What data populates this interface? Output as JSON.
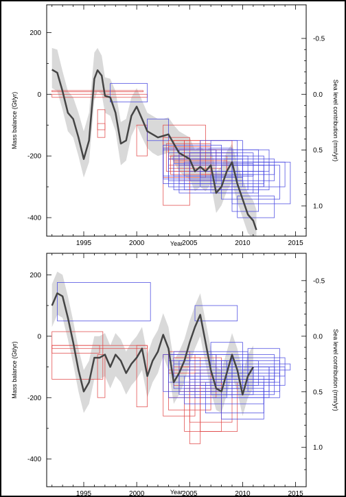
{
  "figure": {
    "panel_count": 2
  },
  "colors": {
    "envelope": "#d9d9d9",
    "mean_line": "#444444",
    "red_boxes": "#e04040",
    "blue_boxes": "#4040e0",
    "frame": "#000000"
  },
  "chart_data": [
    {
      "type": "line",
      "panel": "top",
      "title": "",
      "xlabel": "Year",
      "ylabel": "Mass balance (Gt/yr)",
      "y2label": "Sea level contribution (mm/yr)",
      "xlim": [
        1991.5,
        2016
      ],
      "ylim": [
        -460,
        290
      ],
      "x_ticks": [
        1995,
        2000,
        2005,
        2010,
        2015
      ],
      "x_tick_labels": [
        "1995",
        "2000",
        "2005",
        "2010",
        "2015"
      ],
      "y_ticks": [
        -400,
        -200,
        0,
        200
      ],
      "y_tick_labels": [
        "-400",
        "-200",
        "0",
        "200"
      ],
      "y2_ticks": [
        -0.5,
        0.0,
        0.5,
        1.0
      ],
      "y2_tick_labels": [
        "-0.5",
        "0.0",
        "0.5",
        "1.0"
      ],
      "y2_conversion_gt_per_mm": -362,
      "grid": false,
      "series": [
        {
          "x": [
            1992.0,
            1992.5,
            1993.0,
            1993.5,
            1994.0,
            1994.5,
            1995.0,
            1995.5,
            1996.0,
            1996.3,
            1996.7,
            1997.0,
            1997.5,
            1998.0,
            1998.5,
            1999.0,
            1999.5,
            2000.0,
            2000.5,
            2001.0,
            2001.5,
            2002.0,
            2002.5,
            2003.0,
            2003.5,
            2004.0,
            2004.5,
            2005.0,
            2005.5,
            2006.0,
            2006.5,
            2007.0,
            2007.5,
            2008.0,
            2008.5,
            2009.0,
            2009.5,
            2010.0,
            2010.5,
            2011.0,
            2011.3
          ],
          "y": [
            80,
            70,
            10,
            -60,
            -80,
            -140,
            -210,
            -150,
            50,
            78,
            60,
            -5,
            -10,
            -60,
            -160,
            -150,
            -70,
            -40,
            -80,
            -120,
            -130,
            -140,
            -135,
            -130,
            -160,
            -190,
            -200,
            -210,
            -250,
            -235,
            -250,
            -230,
            -320,
            -300,
            -250,
            -220,
            -290,
            -340,
            -390,
            -410,
            -440
          ],
          "upper": [
            150,
            145,
            75,
            10,
            -10,
            -60,
            -120,
            -60,
            135,
            150,
            125,
            55,
            50,
            10,
            -90,
            -80,
            -10,
            20,
            -20,
            -60,
            -70,
            -80,
            -80,
            -75,
            -100,
            -120,
            -130,
            -140,
            -180,
            -170,
            -185,
            -170,
            -250,
            -235,
            -185,
            -160,
            -225,
            -275,
            -320,
            -345,
            -375
          ],
          "lower": [
            20,
            10,
            -50,
            -120,
            -140,
            -200,
            -270,
            -220,
            -20,
            10,
            0,
            -60,
            -70,
            -120,
            -230,
            -215,
            -135,
            -100,
            -140,
            -175,
            -190,
            -200,
            -195,
            -190,
            -220,
            -250,
            -265,
            -275,
            -315,
            -300,
            -315,
            -290,
            -385,
            -360,
            -315,
            -285,
            -350,
            -400,
            -450,
            -470,
            -500
          ]
        }
      ],
      "red_boxes": [
        {
          "x0": 1992.0,
          "x1": 2000.6,
          "y0": 8,
          "y1": 12
        },
        {
          "x0": 1992.0,
          "x1": 2001.0,
          "y0": -10,
          "y1": 0
        },
        {
          "x0": 1996.3,
          "x1": 1997.0,
          "y0": -140,
          "y1": -50
        },
        {
          "x0": 1996.3,
          "x1": 1997.0,
          "y0": -115,
          "y1": -95
        },
        {
          "x0": 2000.0,
          "x1": 2001.0,
          "y0": -200,
          "y1": -100
        },
        {
          "x0": 2002.5,
          "x1": 2005.0,
          "y0": -360,
          "y1": -140
        },
        {
          "x0": 2002.5,
          "x1": 2006.5,
          "y0": -270,
          "y1": -100
        },
        {
          "x0": 2002.8,
          "x1": 2007.0,
          "y0": -250,
          "y1": -160
        },
        {
          "x0": 2003.0,
          "x1": 2007.5,
          "y0": -230,
          "y1": -180
        },
        {
          "x0": 2003.0,
          "x1": 2008.0,
          "y0": -240,
          "y1": -210
        },
        {
          "x0": 2003.2,
          "x1": 2008.5,
          "y0": -260,
          "y1": -200
        },
        {
          "x0": 2003.5,
          "x1": 2009.0,
          "y0": -220,
          "y1": -150
        },
        {
          "x0": 2004.0,
          "x1": 2009.0,
          "y0": -280,
          "y1": -180
        },
        {
          "x0": 2005.0,
          "x1": 2009.0,
          "y0": -310,
          "y1": -190
        },
        {
          "x0": 2003.0,
          "x1": 2004.5,
          "y0": -200,
          "y1": -150
        },
        {
          "x0": 2004.5,
          "x1": 2006.0,
          "y0": -230,
          "y1": -150
        },
        {
          "x0": 2006.0,
          "x1": 2008.0,
          "y0": -260,
          "y1": -180
        },
        {
          "x0": 2003.5,
          "x1": 2008.5,
          "y0": -250,
          "y1": -215
        },
        {
          "x0": 2003.0,
          "x1": 2007.0,
          "y0": -210,
          "y1": -170
        },
        {
          "x0": 2007.0,
          "x1": 2009.0,
          "y0": -300,
          "y1": -230
        }
      ],
      "blue_boxes": [
        {
          "x0": 1997.5,
          "x1": 2001.0,
          "y0": -25,
          "y1": 35
        },
        {
          "x0": 2001.0,
          "x1": 2003.0,
          "y0": -150,
          "y1": -80
        },
        {
          "x0": 2002.5,
          "x1": 2007.5,
          "y0": -290,
          "y1": -180
        },
        {
          "x0": 2002.5,
          "x1": 2008.0,
          "y0": -275,
          "y1": -165
        },
        {
          "x0": 2002.5,
          "x1": 2009.0,
          "y0": -265,
          "y1": -175
        },
        {
          "x0": 2003.0,
          "x1": 2009.5,
          "y0": -300,
          "y1": -190
        },
        {
          "x0": 2003.0,
          "x1": 2010.0,
          "y0": -280,
          "y1": -210
        },
        {
          "x0": 2003.5,
          "x1": 2010.5,
          "y0": -310,
          "y1": -200
        },
        {
          "x0": 2003.5,
          "x1": 2011.0,
          "y0": -265,
          "y1": -225
        },
        {
          "x0": 2004.0,
          "x1": 2011.5,
          "y0": -320,
          "y1": -180
        },
        {
          "x0": 2004.0,
          "x1": 2012.0,
          "y0": -290,
          "y1": -230
        },
        {
          "x0": 2004.5,
          "x1": 2012.5,
          "y0": -310,
          "y1": -220
        },
        {
          "x0": 2005.0,
          "x1": 2013.0,
          "y0": -280,
          "y1": -210
        },
        {
          "x0": 2005.0,
          "x1": 2011.0,
          "y0": -250,
          "y1": -190
        },
        {
          "x0": 2006.0,
          "x1": 2012.0,
          "y0": -300,
          "y1": -250
        },
        {
          "x0": 2006.0,
          "x1": 2010.0,
          "y0": -270,
          "y1": -150
        },
        {
          "x0": 2007.0,
          "x1": 2011.0,
          "y0": -320,
          "y1": -260
        },
        {
          "x0": 2007.0,
          "x1": 2009.5,
          "y0": -200,
          "y1": -150
        },
        {
          "x0": 2008.0,
          "x1": 2013.5,
          "y0": -340,
          "y1": -230
        },
        {
          "x0": 2008.0,
          "x1": 2012.5,
          "y0": -250,
          "y1": -180
        },
        {
          "x0": 2009.0,
          "x1": 2012.0,
          "y0": -300,
          "y1": -200
        },
        {
          "x0": 2009.0,
          "x1": 2013.0,
          "y0": -260,
          "y1": -230
        },
        {
          "x0": 2010.0,
          "x1": 2014.0,
          "y0": -300,
          "y1": -220
        },
        {
          "x0": 2009.5,
          "x1": 2013.0,
          "y0": -400,
          "y1": -330
        },
        {
          "x0": 2009.0,
          "x1": 2011.5,
          "y0": -380,
          "y1": -300
        },
        {
          "x0": 2009.0,
          "x1": 2014.5,
          "y0": -355,
          "y1": -220
        }
      ]
    },
    {
      "type": "line",
      "panel": "bottom",
      "title": "",
      "xlabel": "Year",
      "ylabel": "Mass balance (Gt/yr)",
      "y2label": "Sea level contribution (mm/yr)",
      "xlim": [
        1991.5,
        2016
      ],
      "ylim": [
        -490,
        270
      ],
      "x_ticks": [
        1995,
        2000,
        2005,
        2010,
        2015
      ],
      "x_tick_labels": [
        "1995",
        "2000",
        "2005",
        "2010",
        "2015"
      ],
      "y_ticks": [
        -400,
        -200,
        0,
        200
      ],
      "y_tick_labels": [
        "-400",
        "-200",
        "0",
        "200"
      ],
      "y2_ticks": [
        -0.5,
        0.0,
        0.5,
        1.0
      ],
      "y2_tick_labels": [
        "-0.5",
        "0.0",
        "0.5",
        "1.0"
      ],
      "y2_conversion_gt_per_mm": -362,
      "grid": false,
      "series": [
        {
          "x": [
            1992.0,
            1992.5,
            1993.0,
            1993.5,
            1994.0,
            1994.5,
            1995.0,
            1995.5,
            1996.0,
            1996.5,
            1997.0,
            1997.5,
            1998.0,
            1998.5,
            1999.0,
            1999.5,
            2000.0,
            2000.5,
            2001.0,
            2001.5,
            2002.0,
            2002.5,
            2003.0,
            2003.5,
            2004.0,
            2004.5,
            2005.0,
            2005.5,
            2006.0,
            2006.5,
            2007.0,
            2007.5,
            2008.0,
            2008.5,
            2009.0,
            2009.5,
            2010.0,
            2010.5,
            2011.0
          ],
          "y": [
            100,
            140,
            130,
            60,
            -20,
            -110,
            -180,
            -150,
            -70,
            -70,
            -60,
            -100,
            -60,
            -80,
            -120,
            -90,
            -70,
            -40,
            -130,
            -80,
            -50,
            5,
            -40,
            -150,
            -120,
            -80,
            -20,
            30,
            70,
            -20,
            -110,
            -170,
            -180,
            -120,
            -60,
            -110,
            -190,
            -130,
            -100
          ],
          "upper": [
            170,
            210,
            200,
            130,
            50,
            -40,
            -110,
            -80,
            0,
            0,
            10,
            -30,
            10,
            -10,
            -50,
            -20,
            0,
            30,
            -60,
            -10,
            20,
            75,
            30,
            -80,
            -50,
            -10,
            50,
            100,
            140,
            50,
            -40,
            -100,
            -110,
            -50,
            10,
            -40,
            -120,
            -60,
            -30
          ],
          "lower": [
            30,
            70,
            60,
            -10,
            -90,
            -180,
            -250,
            -220,
            -140,
            -140,
            -130,
            -170,
            -130,
            -150,
            -190,
            -160,
            -140,
            -110,
            -200,
            -150,
            -120,
            -65,
            -110,
            -220,
            -190,
            -150,
            -90,
            -40,
            0,
            -90,
            -180,
            -240,
            -250,
            -190,
            -130,
            -180,
            -260,
            -200,
            -170
          ]
        }
      ],
      "red_boxes": [
        {
          "x0": 1992.0,
          "x1": 1996.8,
          "y0": -140,
          "y1": 15
        },
        {
          "x0": 1992.0,
          "x1": 1996.5,
          "y0": -55,
          "y1": -30
        },
        {
          "x0": 1992.0,
          "x1": 2001.0,
          "y0": -40,
          "y1": -30
        },
        {
          "x0": 1996.3,
          "x1": 1997.0,
          "y0": -200,
          "y1": -60
        },
        {
          "x0": 2000.0,
          "x1": 2001.0,
          "y0": -230,
          "y1": -30
        },
        {
          "x0": 2002.5,
          "x1": 2005.5,
          "y0": -260,
          "y1": -60
        },
        {
          "x0": 2003.0,
          "x1": 2007.0,
          "y0": -240,
          "y1": -110
        },
        {
          "x0": 2003.0,
          "x1": 2007.5,
          "y0": -200,
          "y1": -60
        },
        {
          "x0": 2003.5,
          "x1": 2008.0,
          "y0": -160,
          "y1": -70
        },
        {
          "x0": 2004.0,
          "x1": 2008.0,
          "y0": -180,
          "y1": -100
        },
        {
          "x0": 2004.5,
          "x1": 2008.0,
          "y0": -310,
          "y1": -170
        },
        {
          "x0": 2005.0,
          "x1": 2009.0,
          "y0": -280,
          "y1": -120
        },
        {
          "x0": 2005.0,
          "x1": 2006.0,
          "y0": -350,
          "y1": -110
        },
        {
          "x0": 2006.0,
          "x1": 2009.5,
          "y0": -310,
          "y1": -150
        },
        {
          "x0": 2003.0,
          "x1": 2005.0,
          "y0": -120,
          "y1": -50
        },
        {
          "x0": 2003.5,
          "x1": 2006.0,
          "y0": -100,
          "y1": -70
        }
      ],
      "blue_boxes": [
        {
          "x0": 1992.5,
          "x1": 2001.3,
          "y0": 50,
          "y1": 175
        },
        {
          "x0": 2005.5,
          "x1": 2009.5,
          "y0": 50,
          "y1": 100
        },
        {
          "x0": 2002.5,
          "x1": 2007.5,
          "y0": -180,
          "y1": -60
        },
        {
          "x0": 2003.0,
          "x1": 2008.5,
          "y0": -200,
          "y1": -80
        },
        {
          "x0": 2003.0,
          "x1": 2009.0,
          "y0": -150,
          "y1": -60
        },
        {
          "x0": 2003.5,
          "x1": 2010.0,
          "y0": -170,
          "y1": -90
        },
        {
          "x0": 2003.5,
          "x1": 2010.5,
          "y0": -130,
          "y1": -50
        },
        {
          "x0": 2004.0,
          "x1": 2011.0,
          "y0": -190,
          "y1": -110
        },
        {
          "x0": 2004.0,
          "x1": 2011.5,
          "y0": -160,
          "y1": -80
        },
        {
          "x0": 2004.5,
          "x1": 2012.0,
          "y0": -220,
          "y1": -130
        },
        {
          "x0": 2005.0,
          "x1": 2012.5,
          "y0": -180,
          "y1": -100
        },
        {
          "x0": 2005.0,
          "x1": 2013.0,
          "y0": -140,
          "y1": -60
        },
        {
          "x0": 2005.5,
          "x1": 2013.5,
          "y0": -200,
          "y1": -120
        },
        {
          "x0": 2006.0,
          "x1": 2014.0,
          "y0": -160,
          "y1": -100
        },
        {
          "x0": 2006.5,
          "x1": 2012.0,
          "y0": -250,
          "y1": -150
        },
        {
          "x0": 2007.0,
          "x1": 2013.0,
          "y0": -190,
          "y1": -140
        },
        {
          "x0": 2007.0,
          "x1": 2010.0,
          "y0": -120,
          "y1": -20
        },
        {
          "x0": 2008.0,
          "x1": 2012.0,
          "y0": -270,
          "y1": -170
        },
        {
          "x0": 2008.0,
          "x1": 2013.5,
          "y0": -150,
          "y1": -80
        },
        {
          "x0": 2009.0,
          "x1": 2012.5,
          "y0": -200,
          "y1": -100
        },
        {
          "x0": 2009.0,
          "x1": 2014.0,
          "y0": -130,
          "y1": -70
        },
        {
          "x0": 2010.0,
          "x1": 2014.5,
          "y0": -110,
          "y1": -90
        },
        {
          "x0": 2010.5,
          "x1": 2013.5,
          "y0": -180,
          "y1": -40
        },
        {
          "x0": 2011.0,
          "x1": 2013.0,
          "y0": -150,
          "y1": -100
        }
      ]
    }
  ]
}
